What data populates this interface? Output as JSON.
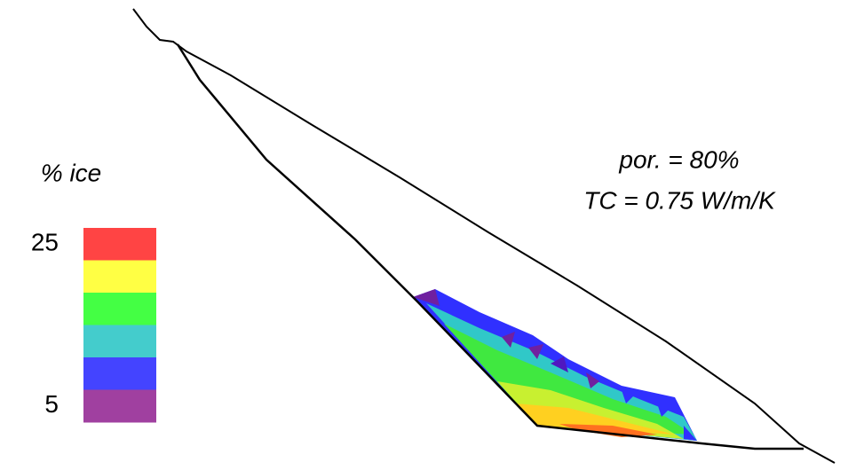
{
  "colorbar": {
    "title": "% ice",
    "ticks": [
      25,
      5
    ],
    "colors": [
      "#ff4444",
      "#ffff44",
      "#44ff44",
      "#44cccc",
      "#4444ff",
      "#a040a0"
    ]
  },
  "annotation": {
    "lines": [
      "por. = 80%",
      "TC = 0.75 W/m/K"
    ]
  }
}
